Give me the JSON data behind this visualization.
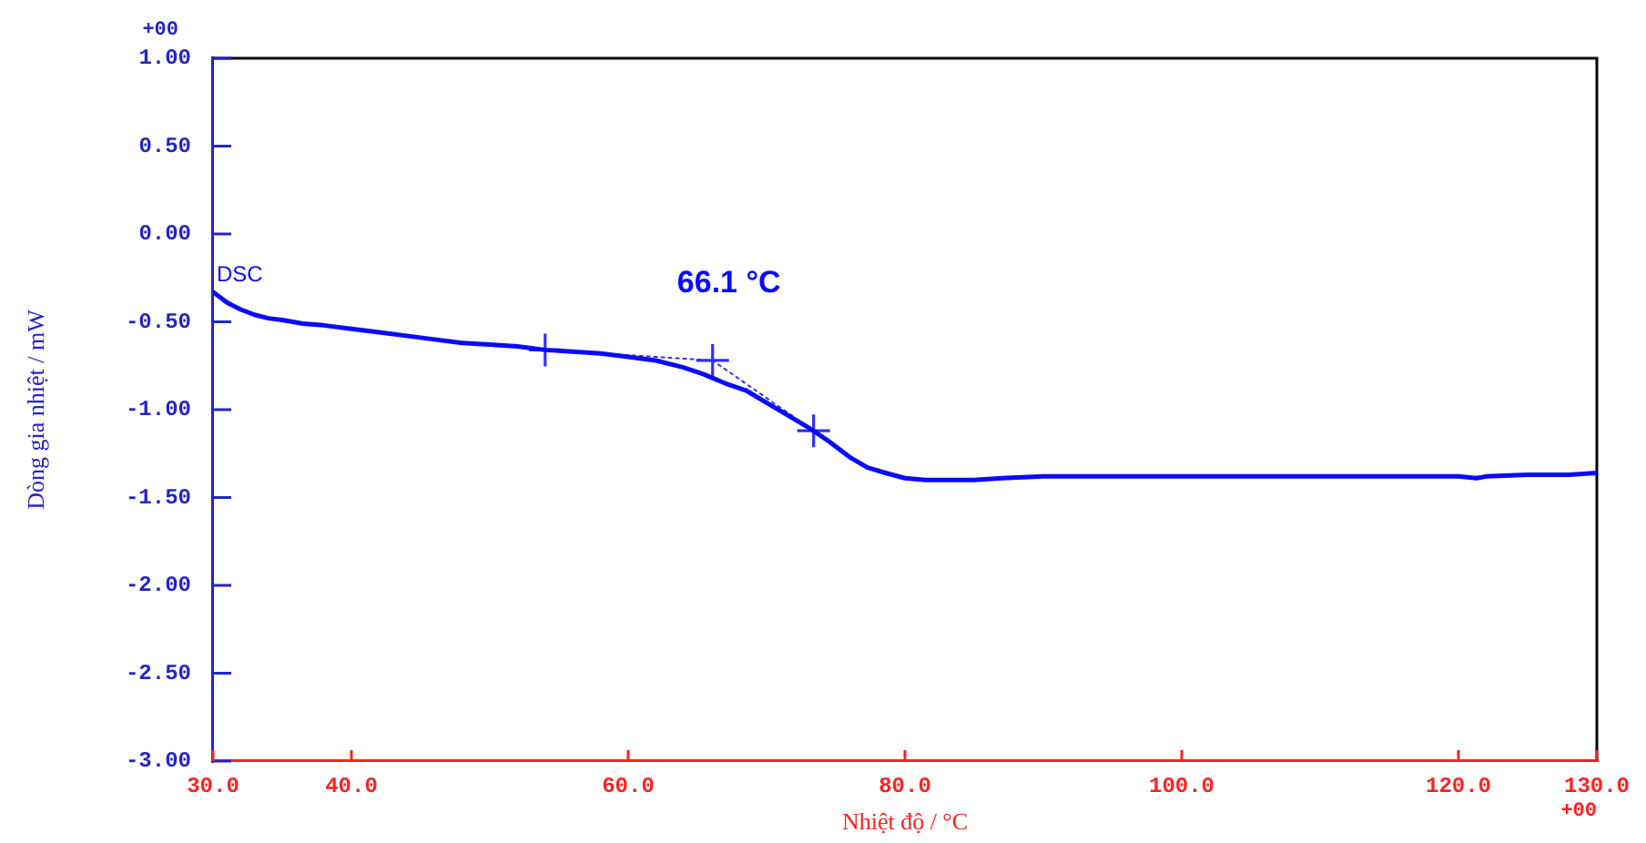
{
  "chart_data": {
    "type": "line",
    "xlabel": "Nhiệt độ / °C",
    "ylabel": "Dòng gia nhiệt / mW",
    "annotations": [
      "+00",
      "+00",
      {
        "text": "66.1 °C",
        "x": 66.1,
        "y": -0.72
      }
    ],
    "xlim": [
      30,
      130
    ],
    "xticks": [
      {
        "value": 30,
        "label": "30.0"
      },
      {
        "value": 40,
        "label": "40.0"
      },
      {
        "value": 60,
        "label": "60.0"
      },
      {
        "value": 80,
        "label": "80.0"
      },
      {
        "value": 100,
        "label": "100.0"
      },
      {
        "value": 120,
        "label": "120.0"
      },
      {
        "value": 130,
        "label": "130.0"
      }
    ],
    "ylim": [
      -3,
      1
    ],
    "yticks": [
      {
        "value": 1,
        "label": "1.00"
      },
      {
        "value": 0.5,
        "label": "0.50"
      },
      {
        "value": 0,
        "label": "0.00"
      },
      {
        "value": -0.5,
        "label": "-0.50"
      },
      {
        "value": -1,
        "label": "-1.00"
      },
      {
        "value": -1.5,
        "label": "-1.50"
      },
      {
        "value": -2,
        "label": "-2.00"
      },
      {
        "value": -2.5,
        "label": "-2.50"
      },
      {
        "value": -3,
        "label": "-3.00"
      }
    ],
    "legend": false,
    "series": [
      {
        "name": "DSC",
        "color": "#0a0aff",
        "x": [
          30,
          31,
          32,
          33,
          34,
          35,
          36.5,
          38,
          40,
          42,
          45,
          48,
          50,
          52,
          54,
          56,
          58,
          60,
          62,
          64,
          65.5,
          67,
          68.5,
          70,
          71.5,
          73,
          74.5,
          76,
          77.3,
          78.6,
          80,
          81.5,
          83,
          85,
          87,
          90,
          100,
          110,
          120,
          121.3,
          122,
          125,
          128,
          130
        ],
        "values": [
          -0.33,
          -0.39,
          -0.43,
          -0.46,
          -0.48,
          -0.49,
          -0.51,
          -0.52,
          -0.54,
          -0.56,
          -0.59,
          -0.62,
          -0.63,
          -0.64,
          -0.66,
          -0.67,
          -0.68,
          -0.7,
          -0.72,
          -0.76,
          -0.8,
          -0.85,
          -0.89,
          -0.96,
          -1.03,
          -1.1,
          -1.18,
          -1.27,
          -1.33,
          -1.36,
          -1.39,
          -1.4,
          -1.4,
          -1.4,
          -1.39,
          -1.38,
          -1.38,
          -1.38,
          -1.38,
          -1.39,
          -1.38,
          -1.37,
          -1.37,
          -1.36
        ]
      },
      {
        "type": "line",
        "color": "#3030ff",
        "x": [
          54,
          66.1,
          73.4
        ],
        "values": [
          -0.66,
          -0.72,
          -1.12
        ],
        "marker": "cross",
        "line_style": "dotted"
      }
    ]
  }
}
